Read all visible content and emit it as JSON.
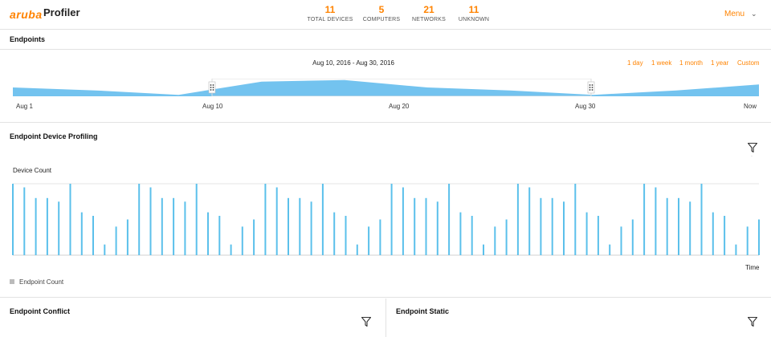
{
  "header": {
    "logo": "aruba",
    "title": "Profiler",
    "stats": [
      {
        "value": "11",
        "label": "TOTAL DEVICES"
      },
      {
        "value": "5",
        "label": "COMPUTERS"
      },
      {
        "value": "21",
        "label": "NETWORKS"
      },
      {
        "value": "11",
        "label": "UNKNOWN"
      }
    ],
    "menu_label": "Menu"
  },
  "endpoints": {
    "title": "Endpoints",
    "range_label": "Aug 10, 2016 - Aug 30, 2016",
    "range_buttons": [
      "1 day",
      "1 week",
      "1 month",
      "1 year",
      "Custom"
    ],
    "timeline_ticks": [
      "Aug 1",
      "Aug 10",
      "Aug 20",
      "Aug 30",
      "Now"
    ]
  },
  "profiling": {
    "title": "Endpoint Device Profiling",
    "y_title": "Device Count",
    "x_title": "Time",
    "legend": "Endpoint Count"
  },
  "conflict": {
    "title": "Endpoint Conflict"
  },
  "static": {
    "title": "Endpoint Static"
  },
  "colors": {
    "accent": "#ff8300",
    "series": "#5bc0eb",
    "timeline_fill": "#5bb8ec"
  },
  "icons": [
    "filter-icon",
    "chevron-down-icon",
    "drag-handle-icon"
  ],
  "chart_data": [
    {
      "type": "area",
      "x": [
        "Aug 1",
        "Aug 5",
        "Aug 10",
        "Aug 12",
        "Aug 15",
        "Aug 20",
        "Aug 25",
        "Aug 30",
        "Aug 31",
        "Now"
      ],
      "values": [
        3,
        2,
        0.5,
        5,
        5.5,
        3,
        2,
        0.5,
        2,
        4
      ],
      "selection": [
        "Aug 10",
        "Aug 30"
      ]
    },
    {
      "type": "bar",
      "title": "",
      "ylabel": "Device Count",
      "xlabel": "Time",
      "series": [
        {
          "name": "Endpoint Count",
          "values": [
            10,
            9.5,
            8,
            8,
            7.5,
            10,
            6,
            5.5,
            1.5,
            4,
            5,
            10,
            9.5,
            8,
            8,
            7.5,
            10,
            6,
            5.5,
            1.5,
            4,
            5,
            10,
            9.5,
            8,
            8,
            7.5,
            10,
            6,
            5.5,
            1.5,
            4,
            5,
            10,
            9.5,
            8,
            8,
            7.5,
            10,
            6,
            5.5,
            1.5,
            4,
            5,
            10,
            9.5,
            8,
            8,
            7.5,
            10,
            6,
            5.5,
            1.5,
            4,
            5,
            10,
            9.5,
            8,
            8,
            7.5,
            10,
            6,
            5.5,
            1.5,
            4,
            5
          ]
        }
      ],
      "ylim": [
        0,
        10
      ]
    }
  ]
}
